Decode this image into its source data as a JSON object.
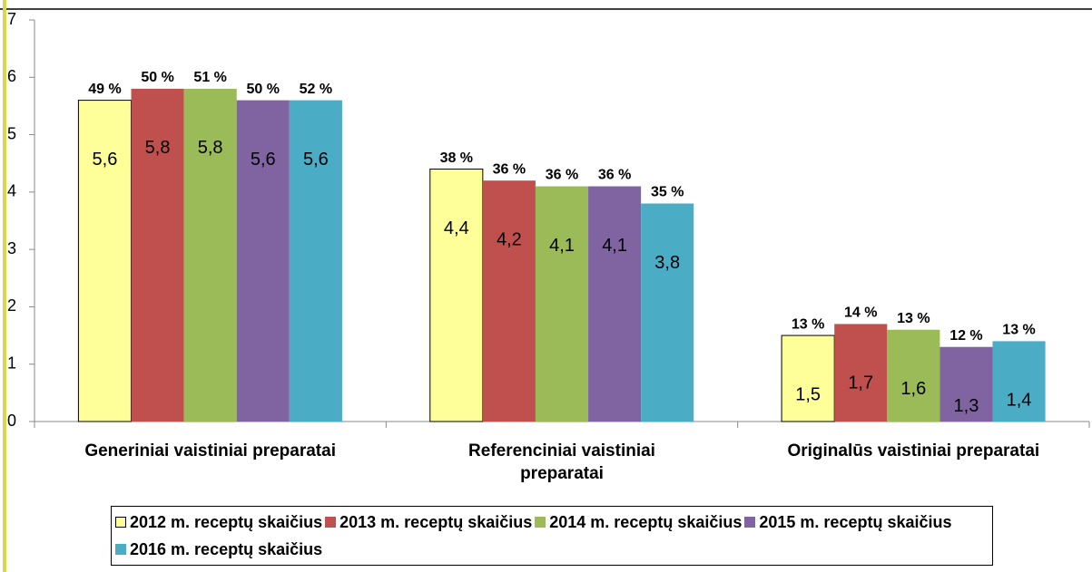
{
  "chart_data": {
    "type": "bar",
    "categories": [
      "Generiniai vaistiniai preparatai",
      "Referenciniai vaistiniai preparatai",
      "Originalūs vaistiniai preparatai"
    ],
    "series": [
      {
        "name": "2012 m. receptų skaičius",
        "color": "#ffff99",
        "values": [
          5.6,
          4.4,
          1.5
        ],
        "value_labels": [
          "5,6",
          "4,4",
          "1,5"
        ],
        "percent_labels": [
          "49 %",
          "38 %",
          "13 %"
        ]
      },
      {
        "name": "2013 m. receptų skaičius",
        "color": "#c0504d",
        "values": [
          5.8,
          4.2,
          1.7
        ],
        "value_labels": [
          "5,8",
          "4,2",
          "1,7"
        ],
        "percent_labels": [
          "50 %",
          "36 %",
          "14 %"
        ]
      },
      {
        "name": "2014 m. receptų skaičius",
        "color": "#9bbb59",
        "values": [
          5.8,
          4.1,
          1.6
        ],
        "value_labels": [
          "5,8",
          "4,1",
          "1,6"
        ],
        "percent_labels": [
          "51 %",
          "36 %",
          "13 %"
        ]
      },
      {
        "name": "2015 m. receptų skaičius",
        "color": "#8064a2",
        "values": [
          5.6,
          4.1,
          1.3
        ],
        "value_labels": [
          "5,6",
          "4,1",
          "1,3"
        ],
        "percent_labels": [
          "50 %",
          "36 %",
          "12 %"
        ]
      },
      {
        "name": "2016 m. receptų skaičius",
        "color": "#4bacc6",
        "values": [
          5.6,
          3.8,
          1.4
        ],
        "value_labels": [
          "5,6",
          "3,8",
          "1,4"
        ],
        "percent_labels": [
          "52 %",
          "35 %",
          "13 %"
        ]
      }
    ],
    "ylim": [
      0,
      7
    ],
    "yticks": [
      0,
      1,
      2,
      3,
      4,
      5,
      6,
      7
    ],
    "grid": false,
    "legend": "bottom"
  }
}
